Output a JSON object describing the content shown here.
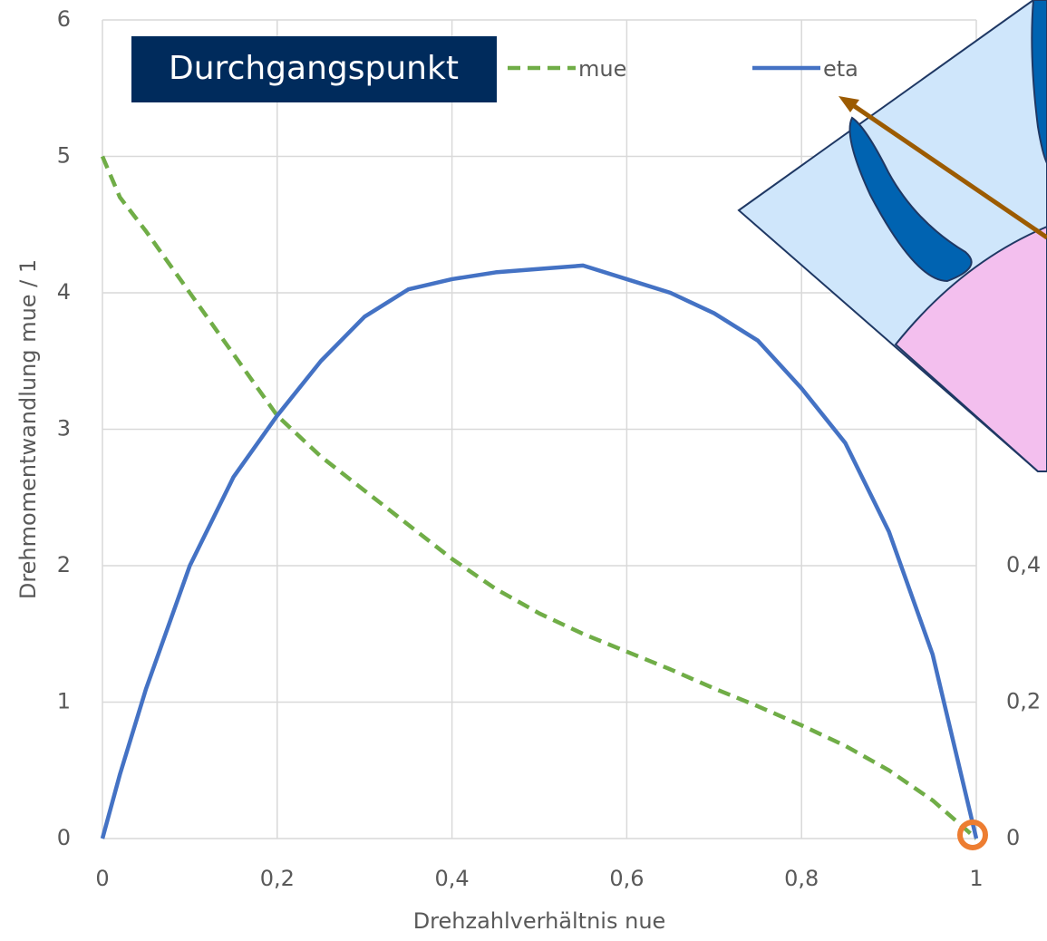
{
  "chart_data": {
    "type": "line",
    "title": "Durchgangspunkt",
    "x_label": "Drehzahlverhältnis nue",
    "y_label": "Drehmomentwandlung mue / 1",
    "x": [
      0,
      0.02,
      0.05,
      0.1,
      0.15,
      0.2,
      0.25,
      0.3,
      0.35,
      0.4,
      0.45,
      0.5,
      0.55,
      0.6,
      0.65,
      0.7,
      0.75,
      0.8,
      0.85,
      0.9,
      0.95,
      1
    ],
    "series": [
      {
        "name": "mue",
        "color": "#70ad47",
        "dash": true,
        "values": [
          5,
          4.7,
          4.45,
          4.0,
          3.55,
          3.1,
          2.8,
          2.55,
          2.3,
          2.05,
          1.83,
          1.65,
          1.5,
          1.37,
          1.24,
          1.1,
          0.97,
          0.83,
          0.68,
          0.5,
          0.28,
          0
        ]
      },
      {
        "name": "eta",
        "color": "#4472c4",
        "axis": "y2",
        "values": [
          0,
          0.094,
          0.22,
          0.4,
          0.53,
          0.62,
          0.7,
          0.765,
          0.805,
          0.82,
          0.83,
          0.835,
          0.84,
          0.82,
          0.8,
          0.77,
          0.73,
          0.66,
          0.58,
          0.45,
          0.27,
          0
        ]
      }
    ],
    "xlim": [
      0,
      1
    ],
    "xticks": [
      0,
      {
        "value": 0.2,
        "label": "0,2"
      },
      {
        "value": 0.4,
        "label": "0,4"
      },
      {
        "value": 0.6,
        "label": "0,6"
      },
      {
        "value": 0.8,
        "label": "0,8"
      },
      1
    ],
    "ylim": [
      0,
      6
    ],
    "yticks": [
      0,
      1,
      2,
      3,
      4,
      5,
      6
    ],
    "y2lim": [
      0,
      1.2
    ],
    "y2ticks": [
      0,
      {
        "value": 0.2,
        "label": "0,2"
      },
      {
        "value": 0.4,
        "label": "0,4"
      }
    ],
    "grid": true
  }
}
